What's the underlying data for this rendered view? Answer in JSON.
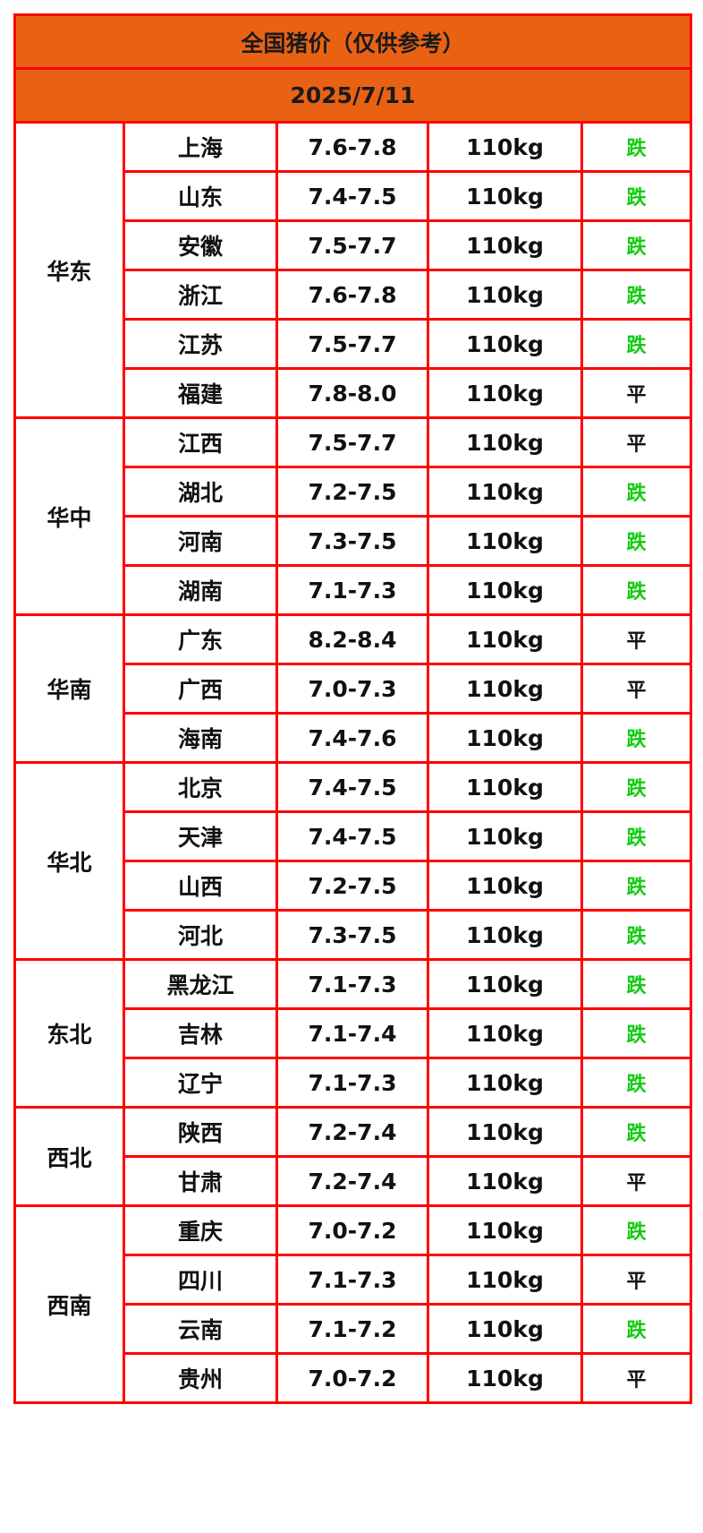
{
  "title": "全国猪价（仅供参考）",
  "date": "2025/7/11",
  "colors": {
    "header_bg": "#e96214",
    "border": "#ff0000",
    "down": "#11cc11",
    "flat": "#111111"
  },
  "regions": [
    {
      "name": "华东",
      "rows": [
        [
          "上海",
          "7.6-7.8",
          "110kg",
          "跌"
        ],
        [
          "山东",
          "7.4-7.5",
          "110kg",
          "跌"
        ],
        [
          "安徽",
          "7.5-7.7",
          "110kg",
          "跌"
        ],
        [
          "浙江",
          "7.6-7.8",
          "110kg",
          "跌"
        ],
        [
          "江苏",
          "7.5-7.7",
          "110kg",
          "跌"
        ],
        [
          "福建",
          "7.8-8.0",
          "110kg",
          "平"
        ]
      ]
    },
    {
      "name": "华中",
      "rows": [
        [
          "江西",
          "7.5-7.7",
          "110kg",
          "平"
        ],
        [
          "湖北",
          "7.2-7.5",
          "110kg",
          "跌"
        ],
        [
          "河南",
          "7.3-7.5",
          "110kg",
          "跌"
        ],
        [
          "湖南",
          "7.1-7.3",
          "110kg",
          "跌"
        ]
      ]
    },
    {
      "name": "华南",
      "rows": [
        [
          "广东",
          "8.2-8.4",
          "110kg",
          "平"
        ],
        [
          "广西",
          "7.0-7.3",
          "110kg",
          "平"
        ],
        [
          "海南",
          "7.4-7.6",
          "110kg",
          "跌"
        ]
      ]
    },
    {
      "name": "华北",
      "rows": [
        [
          "北京",
          "7.4-7.5",
          "110kg",
          "跌"
        ],
        [
          "天津",
          "7.4-7.5",
          "110kg",
          "跌"
        ],
        [
          "山西",
          "7.2-7.5",
          "110kg",
          "跌"
        ],
        [
          "河北",
          "7.3-7.5",
          "110kg",
          "跌"
        ]
      ]
    },
    {
      "name": "东北",
      "rows": [
        [
          "黑龙江",
          "7.1-7.3",
          "110kg",
          "跌"
        ],
        [
          "吉林",
          "7.1-7.4",
          "110kg",
          "跌"
        ],
        [
          "辽宁",
          "7.1-7.3",
          "110kg",
          "跌"
        ]
      ]
    },
    {
      "name": "西北",
      "rows": [
        [
          "陕西",
          "7.2-7.4",
          "110kg",
          "跌"
        ],
        [
          "甘肃",
          "7.2-7.4",
          "110kg",
          "平"
        ]
      ]
    },
    {
      "name": "西南",
      "rows": [
        [
          "重庆",
          "7.0-7.2",
          "110kg",
          "跌"
        ],
        [
          "四川",
          "7.1-7.3",
          "110kg",
          "平"
        ],
        [
          "云南",
          "7.1-7.2",
          "110kg",
          "跌"
        ],
        [
          "贵州",
          "7.0-7.2",
          "110kg",
          "平"
        ]
      ]
    }
  ]
}
